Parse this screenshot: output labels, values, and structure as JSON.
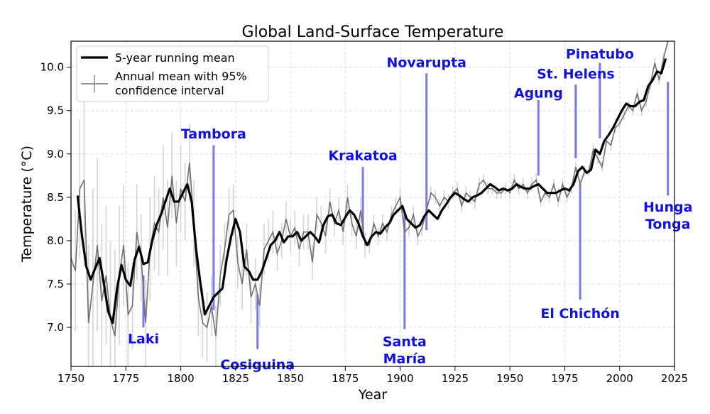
{
  "chart_data": {
    "type": "line",
    "title": "Global Land-Surface Temperature",
    "xlabel": "Year",
    "ylabel": "Temperature (°C)",
    "xlim": [
      1750,
      2025
    ],
    "ylim": [
      6.55,
      10.3
    ],
    "xticks": [
      1750,
      1775,
      1800,
      1825,
      1850,
      1875,
      1900,
      1925,
      1950,
      1975,
      2000,
      2025
    ],
    "yticks": [
      7.0,
      7.5,
      8.0,
      8.5,
      9.0,
      9.5,
      10.0
    ],
    "grid": true,
    "legend_position": "top-left",
    "legend": [
      {
        "label": "5-year running mean",
        "style": "thick-line"
      },
      {
        "label_lines": [
          "Annual mean with 95%",
          "confidence interval"
        ],
        "style": "line-with-errorbar"
      }
    ],
    "colors": {
      "running_mean": "#000000",
      "annual": "#707070",
      "ci": "#d3d3d3",
      "volcano_text": "#1010e0",
      "volcano_line": "#7878f0",
      "grid": "#dddddd"
    },
    "series": [
      {
        "name": "5-year running mean",
        "x": [
          1753,
          1755,
          1757,
          1759,
          1761,
          1763,
          1765,
          1767,
          1769,
          1771,
          1773,
          1775,
          1777,
          1779,
          1781,
          1783,
          1785,
          1787,
          1789,
          1791,
          1793,
          1795,
          1797,
          1799,
          1801,
          1803,
          1805,
          1807,
          1809,
          1811,
          1813,
          1815,
          1817,
          1819,
          1821,
          1823,
          1825,
          1827,
          1829,
          1831,
          1833,
          1835,
          1837,
          1839,
          1841,
          1843,
          1845,
          1847,
          1849,
          1851,
          1853,
          1855,
          1857,
          1859,
          1861,
          1863,
          1865,
          1867,
          1869,
          1871,
          1873,
          1875,
          1877,
          1879,
          1881,
          1883,
          1885,
          1887,
          1889,
          1891,
          1893,
          1895,
          1897,
          1899,
          1901,
          1903,
          1905,
          1907,
          1909,
          1911,
          1913,
          1915,
          1917,
          1919,
          1921,
          1923,
          1925,
          1927,
          1929,
          1931,
          1933,
          1935,
          1937,
          1939,
          1941,
          1943,
          1945,
          1947,
          1949,
          1951,
          1953,
          1955,
          1957,
          1959,
          1961,
          1963,
          1965,
          1967,
          1969,
          1971,
          1973,
          1975,
          1977,
          1979,
          1981,
          1983,
          1985,
          1987,
          1989,
          1991,
          1993,
          1995,
          1997,
          1999,
          2001,
          2003,
          2005,
          2007,
          2009,
          2011,
          2013,
          2015,
          2017,
          2019,
          2021
        ],
        "values": [
          8.52,
          8.05,
          7.7,
          7.55,
          7.68,
          7.8,
          7.5,
          7.18,
          7.05,
          7.45,
          7.72,
          7.55,
          7.48,
          7.78,
          7.93,
          7.73,
          7.75,
          8.0,
          8.18,
          8.3,
          8.45,
          8.6,
          8.45,
          8.45,
          8.55,
          8.65,
          8.45,
          7.9,
          7.5,
          7.15,
          7.25,
          7.35,
          7.4,
          7.45,
          7.8,
          8.05,
          8.25,
          8.1,
          7.7,
          7.65,
          7.55,
          7.55,
          7.65,
          7.8,
          7.95,
          8.0,
          8.1,
          7.98,
          8.05,
          8.05,
          8.1,
          8.0,
          8.05,
          8.1,
          8.05,
          7.98,
          8.18,
          8.28,
          8.3,
          8.2,
          8.18,
          8.27,
          8.35,
          8.3,
          8.2,
          8.05,
          7.95,
          8.05,
          8.1,
          8.08,
          8.15,
          8.2,
          8.3,
          8.35,
          8.4,
          8.25,
          8.2,
          8.15,
          8.18,
          8.28,
          8.35,
          8.3,
          8.25,
          8.35,
          8.42,
          8.5,
          8.55,
          8.52,
          8.48,
          8.45,
          8.5,
          8.52,
          8.55,
          8.6,
          8.65,
          8.62,
          8.58,
          8.6,
          8.58,
          8.6,
          8.65,
          8.62,
          8.6,
          8.6,
          8.63,
          8.65,
          8.6,
          8.55,
          8.55,
          8.55,
          8.58,
          8.6,
          8.58,
          8.65,
          8.8,
          8.85,
          8.78,
          8.82,
          9.05,
          9.0,
          9.15,
          9.22,
          9.3,
          9.4,
          9.5,
          9.58,
          9.55,
          9.55,
          9.6,
          9.62,
          9.78,
          9.85,
          9.95,
          9.93,
          10.1
        ]
      },
      {
        "name": "Annual mean with 95% confidence interval",
        "x": [
          1750,
          1752,
          1754,
          1756,
          1758,
          1760,
          1762,
          1764,
          1766,
          1768,
          1770,
          1772,
          1774,
          1776,
          1778,
          1780,
          1782,
          1784,
          1786,
          1788,
          1790,
          1792,
          1794,
          1796,
          1798,
          1800,
          1802,
          1804,
          1806,
          1808,
          1810,
          1812,
          1814,
          1816,
          1818,
          1820,
          1822,
          1824,
          1826,
          1828,
          1830,
          1832,
          1834,
          1836,
          1838,
          1840,
          1842,
          1844,
          1846,
          1848,
          1850,
          1852,
          1854,
          1856,
          1858,
          1860,
          1862,
          1864,
          1866,
          1868,
          1870,
          1872,
          1874,
          1876,
          1878,
          1880,
          1882,
          1884,
          1886,
          1888,
          1890,
          1892,
          1894,
          1896,
          1898,
          1900,
          1902,
          1904,
          1906,
          1908,
          1910,
          1912,
          1914,
          1916,
          1918,
          1920,
          1922,
          1924,
          1926,
          1928,
          1930,
          1932,
          1934,
          1936,
          1938,
          1940,
          1942,
          1944,
          1946,
          1948,
          1950,
          1952,
          1954,
          1956,
          1958,
          1960,
          1962,
          1964,
          1966,
          1968,
          1970,
          1972,
          1974,
          1976,
          1978,
          1980,
          1982,
          1984,
          1986,
          1988,
          1990,
          1992,
          1994,
          1996,
          1998,
          2000,
          2002,
          2004,
          2006,
          2008,
          2010,
          2012,
          2014,
          2016,
          2018,
          2020,
          2022,
          2024
        ],
        "values": [
          7.8,
          7.65,
          8.6,
          8.7,
          7.05,
          7.5,
          7.95,
          7.3,
          7.6,
          7.1,
          6.9,
          7.6,
          7.95,
          7.15,
          7.25,
          8.1,
          7.8,
          7.05,
          7.9,
          8.2,
          8.1,
          8.5,
          8.15,
          8.75,
          8.2,
          8.6,
          8.45,
          8.9,
          8.2,
          7.35,
          7.05,
          7.0,
          7.25,
          6.9,
          7.6,
          7.9,
          8.3,
          8.35,
          7.75,
          7.5,
          7.9,
          7.35,
          7.5,
          7.25,
          7.9,
          8.0,
          8.1,
          7.85,
          8.0,
          8.25,
          8.05,
          8.15,
          7.9,
          8.1,
          8.1,
          7.75,
          8.3,
          8.2,
          8.05,
          8.45,
          8.2,
          8.35,
          8.1,
          8.5,
          8.2,
          8.05,
          8.35,
          7.95,
          7.95,
          8.2,
          8.05,
          8.2,
          8.1,
          8.3,
          8.4,
          8.5,
          8.1,
          8.15,
          8.3,
          8.05,
          8.15,
          8.35,
          8.55,
          8.5,
          8.4,
          8.5,
          8.45,
          8.55,
          8.6,
          8.4,
          8.55,
          8.5,
          8.45,
          8.65,
          8.7,
          8.6,
          8.6,
          8.55,
          8.55,
          8.6,
          8.55,
          8.7,
          8.6,
          8.65,
          8.55,
          8.65,
          8.7,
          8.45,
          8.55,
          8.5,
          8.65,
          8.45,
          8.65,
          8.5,
          8.6,
          8.85,
          8.65,
          8.8,
          8.8,
          9.05,
          8.95,
          8.85,
          9.15,
          9.1,
          9.3,
          9.35,
          9.45,
          9.55,
          9.5,
          9.7,
          9.5,
          9.6,
          9.8,
          10.05,
          9.85,
          10.1,
          10.3,
          10.5
        ],
        "ci": [
          0.7,
          0.7,
          0.8,
          1.0,
          0.9,
          1.1,
          1.0,
          0.9,
          0.8,
          0.9,
          1.0,
          0.8,
          0.7,
          0.6,
          0.5,
          0.55,
          0.5,
          0.5,
          0.6,
          0.55,
          0.5,
          0.6,
          0.55,
          0.5,
          0.5,
          0.5,
          0.45,
          0.45,
          0.5,
          0.45,
          0.4,
          0.4,
          0.35,
          0.35,
          0.35,
          0.3,
          0.3,
          0.3,
          0.3,
          0.3,
          0.3,
          0.3,
          0.3,
          0.25,
          0.3,
          0.25,
          0.25,
          0.2,
          0.2,
          0.2,
          0.2,
          0.2,
          0.2,
          0.2,
          0.2,
          0.2,
          0.2,
          0.2,
          0.2,
          0.15,
          0.15,
          0.15,
          0.15,
          0.15,
          0.15,
          0.15,
          0.15,
          0.15,
          0.1,
          0.1,
          0.1,
          0.1,
          0.1,
          0.1,
          0.1,
          0.1,
          0.1,
          0.1,
          0.1,
          0.1,
          0.1,
          0.08,
          0.08,
          0.08,
          0.08,
          0.08,
          0.08,
          0.08,
          0.08,
          0.08,
          0.08,
          0.08,
          0.08,
          0.07,
          0.07,
          0.07,
          0.07,
          0.07,
          0.07,
          0.07,
          0.07,
          0.07,
          0.07,
          0.07,
          0.07,
          0.07,
          0.07,
          0.06,
          0.06,
          0.06,
          0.06,
          0.06,
          0.06,
          0.06,
          0.06,
          0.06,
          0.06,
          0.06,
          0.06,
          0.06,
          0.06,
          0.06,
          0.06,
          0.06,
          0.06,
          0.06,
          0.06,
          0.06,
          0.06,
          0.06,
          0.06,
          0.06,
          0.06,
          0.06,
          0.06,
          0.06,
          0.06
        ]
      }
    ],
    "annotations": [
      {
        "name": "Laki",
        "year": 1783,
        "line_from": 7.0,
        "line_to": 7.6,
        "label_temp": 6.93,
        "label_lines": [
          "Laki"
        ],
        "side": "below"
      },
      {
        "name": "Tambora",
        "year": 1815,
        "line_from": 7.2,
        "line_to": 9.1,
        "label_temp": 9.18,
        "label_lines": [
          "Tambora"
        ],
        "side": "above"
      },
      {
        "name": "Cosiguina",
        "year": 1835,
        "line_from": 6.75,
        "line_to": 7.38,
        "label_temp": 6.63,
        "label_lines": [
          "Cosiguina"
        ],
        "side": "below"
      },
      {
        "name": "Krakatoa",
        "year": 1883,
        "line_from": 8.05,
        "line_to": 8.85,
        "label_temp": 8.93,
        "label_lines": [
          "Krakatoa"
        ],
        "side": "above"
      },
      {
        "name": "Santa María",
        "year": 1902,
        "line_from": 6.98,
        "line_to": 8.3,
        "label_temp": 6.9,
        "label_lines": [
          "Santa",
          "María"
        ],
        "side": "below"
      },
      {
        "name": "Novarupta",
        "year": 1912,
        "line_from": 8.12,
        "line_to": 9.93,
        "label_temp": 10.0,
        "label_lines": [
          "Novarupta"
        ],
        "side": "above"
      },
      {
        "name": "Agung",
        "year": 1963,
        "line_from": 8.75,
        "line_to": 9.62,
        "label_temp": 9.65,
        "label_lines": [
          "Agung"
        ],
        "side": "above"
      },
      {
        "name": "St. Helens",
        "year": 1980,
        "line_from": 8.95,
        "line_to": 9.8,
        "label_temp": 9.87,
        "label_lines": [
          "St. Helens"
        ],
        "side": "above"
      },
      {
        "name": "El Chichón",
        "year": 1982,
        "line_from": 7.32,
        "line_to": 8.65,
        "label_temp": 7.22,
        "label_lines": [
          "El Chichón"
        ],
        "side": "below"
      },
      {
        "name": "Pinatubo",
        "year": 1991,
        "line_from": 9.18,
        "line_to": 10.05,
        "label_temp": 10.1,
        "label_lines": [
          "Pinatubo"
        ],
        "side": "above"
      },
      {
        "name": "Hunga Tonga",
        "year": 2022,
        "line_from": 8.52,
        "line_to": 9.83,
        "label_temp": 8.45,
        "label_lines": [
          "Hunga",
          "Tonga"
        ],
        "side": "below"
      }
    ]
  }
}
